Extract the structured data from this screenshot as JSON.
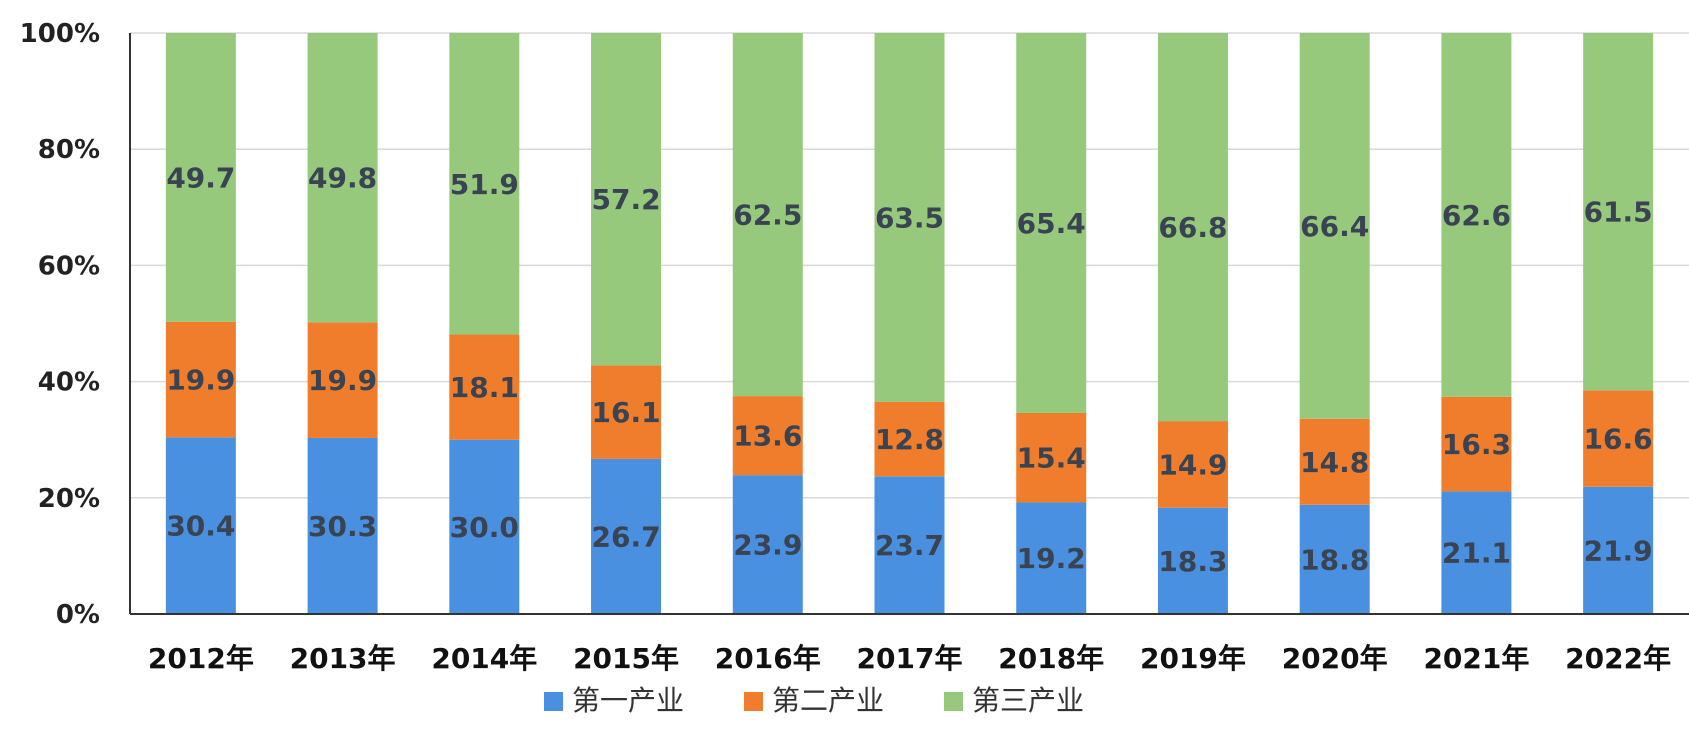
{
  "chart_data": {
    "type": "bar",
    "stacked": true,
    "percent": true,
    "categories": [
      "2012年",
      "2013年",
      "2014年",
      "2015年",
      "2016年",
      "2017年",
      "2018年",
      "2019年",
      "2020年",
      "2021年",
      "2022年"
    ],
    "series": [
      {
        "name": "第一产业",
        "color": "#4a90e0",
        "values": [
          30.4,
          30.3,
          30.0,
          26.7,
          23.9,
          23.7,
          19.2,
          18.3,
          18.8,
          21.1,
          21.9
        ]
      },
      {
        "name": "第二产业",
        "color": "#f07d2b",
        "values": [
          19.9,
          19.9,
          18.1,
          16.1,
          13.6,
          12.8,
          15.4,
          14.9,
          14.8,
          16.3,
          16.6
        ]
      },
      {
        "name": "第三产业",
        "color": "#97c97d",
        "values": [
          49.7,
          49.8,
          51.9,
          57.2,
          62.5,
          63.5,
          65.4,
          66.8,
          66.4,
          62.6,
          61.5
        ]
      }
    ],
    "y_ticks": [
      "0%",
      "20%",
      "40%",
      "60%",
      "80%",
      "100%"
    ],
    "ylim": [
      0,
      100
    ],
    "grid": true,
    "legend_position": "bottom"
  }
}
